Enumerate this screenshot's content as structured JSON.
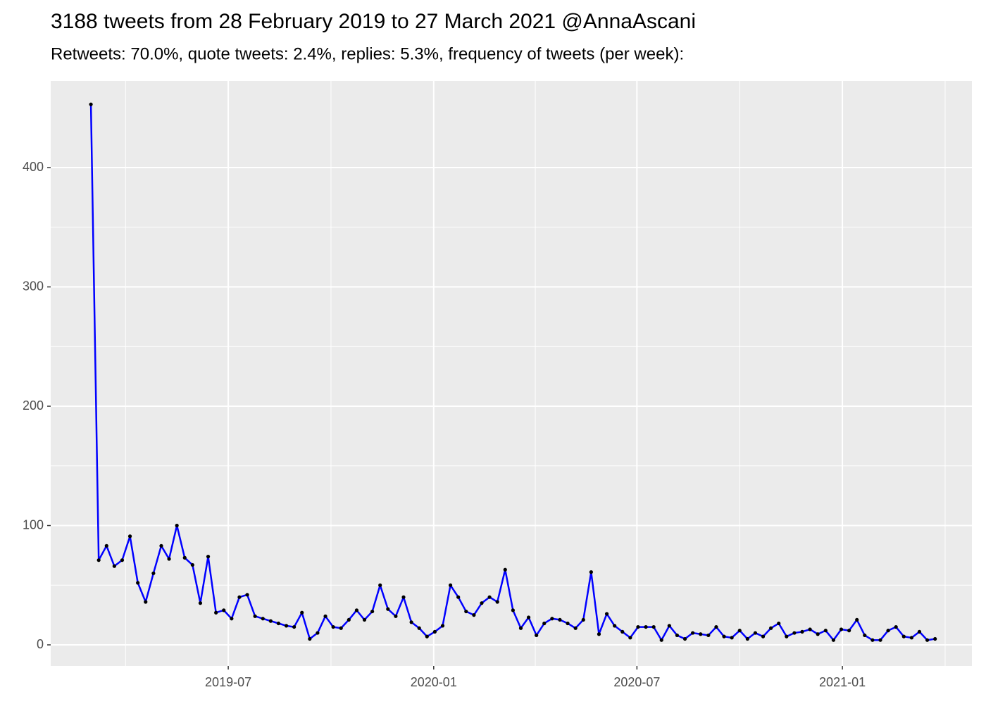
{
  "chart_data": {
    "type": "line",
    "title": "3188 tweets from 28 February 2019 to 27 March 2021 @AnnaAscani",
    "subtitle": "Retweets: 70.0%, quote tweets: 2.4%, replies: 5.3%, frequency of tweets (per week):",
    "x": [
      "2019-02-28",
      "2019-03-07",
      "2019-03-14",
      "2019-03-21",
      "2019-03-28",
      "2019-04-04",
      "2019-04-11",
      "2019-04-18",
      "2019-04-25",
      "2019-05-02",
      "2019-05-09",
      "2019-05-16",
      "2019-05-23",
      "2019-05-30",
      "2019-06-06",
      "2019-06-13",
      "2019-06-20",
      "2019-06-27",
      "2019-07-04",
      "2019-07-11",
      "2019-07-18",
      "2019-07-25",
      "2019-08-01",
      "2019-08-08",
      "2019-08-15",
      "2019-08-22",
      "2019-08-29",
      "2019-09-05",
      "2019-09-12",
      "2019-09-19",
      "2019-09-26",
      "2019-10-03",
      "2019-10-10",
      "2019-10-17",
      "2019-10-24",
      "2019-10-31",
      "2019-11-07",
      "2019-11-14",
      "2019-11-21",
      "2019-11-28",
      "2019-12-05",
      "2019-12-12",
      "2019-12-19",
      "2019-12-26",
      "2020-01-02",
      "2020-01-09",
      "2020-01-16",
      "2020-01-23",
      "2020-01-30",
      "2020-02-06",
      "2020-02-13",
      "2020-02-20",
      "2020-02-27",
      "2020-03-05",
      "2020-03-12",
      "2020-03-19",
      "2020-03-26",
      "2020-04-02",
      "2020-04-09",
      "2020-04-16",
      "2020-04-23",
      "2020-04-30",
      "2020-05-07",
      "2020-05-14",
      "2020-05-21",
      "2020-05-28",
      "2020-06-04",
      "2020-06-11",
      "2020-06-18",
      "2020-06-25",
      "2020-07-02",
      "2020-07-09",
      "2020-07-16",
      "2020-07-23",
      "2020-07-30",
      "2020-08-06",
      "2020-08-13",
      "2020-08-20",
      "2020-08-27",
      "2020-09-03",
      "2020-09-10",
      "2020-09-17",
      "2020-09-24",
      "2020-10-01",
      "2020-10-08",
      "2020-10-15",
      "2020-10-22",
      "2020-10-29",
      "2020-11-05",
      "2020-11-12",
      "2020-11-19",
      "2020-11-26",
      "2020-12-03",
      "2020-12-10",
      "2020-12-17",
      "2020-12-24",
      "2020-12-31",
      "2021-01-07",
      "2021-01-14",
      "2021-01-21",
      "2021-01-28",
      "2021-02-04",
      "2021-02-11",
      "2021-02-18",
      "2021-02-25",
      "2021-03-04",
      "2021-03-11",
      "2021-03-18",
      "2021-03-25"
    ],
    "values": [
      453,
      71,
      83,
      66,
      71,
      91,
      52,
      36,
      60,
      83,
      72,
      100,
      73,
      67,
      35,
      74,
      27,
      29,
      22,
      40,
      42,
      24,
      22,
      20,
      18,
      16,
      15,
      27,
      5,
      10,
      24,
      15,
      14,
      21,
      29,
      21,
      28,
      50,
      30,
      24,
      40,
      19,
      14,
      7,
      11,
      16,
      50,
      40,
      28,
      25,
      35,
      40,
      36,
      63,
      29,
      14,
      23,
      8,
      18,
      22,
      21,
      18,
      14,
      21,
      61,
      9,
      26,
      16,
      11,
      6,
      15,
      15,
      15,
      4,
      16,
      8,
      5,
      10,
      9,
      8,
      15,
      7,
      6,
      12,
      5,
      10,
      7,
      14,
      18,
      7,
      10,
      11,
      13,
      9,
      12,
      4,
      13,
      12,
      21,
      8,
      4,
      4,
      12,
      15,
      7,
      6,
      11,
      4,
      5
    ],
    "color": "#0000ff",
    "marker_color": "#000000",
    "xlim": [
      "2019-01-23",
      "2021-04-27"
    ],
    "xticks": [
      {
        "value": "2019-07-01",
        "label": "2019-07"
      },
      {
        "value": "2020-01-01",
        "label": "2020-01"
      },
      {
        "value": "2020-07-01",
        "label": "2020-07"
      },
      {
        "value": "2021-01-01",
        "label": "2021-01"
      }
    ],
    "ylim": [
      -17.7,
      472.6
    ],
    "yticks": [
      0,
      100,
      200,
      300,
      400
    ],
    "grid": true
  }
}
